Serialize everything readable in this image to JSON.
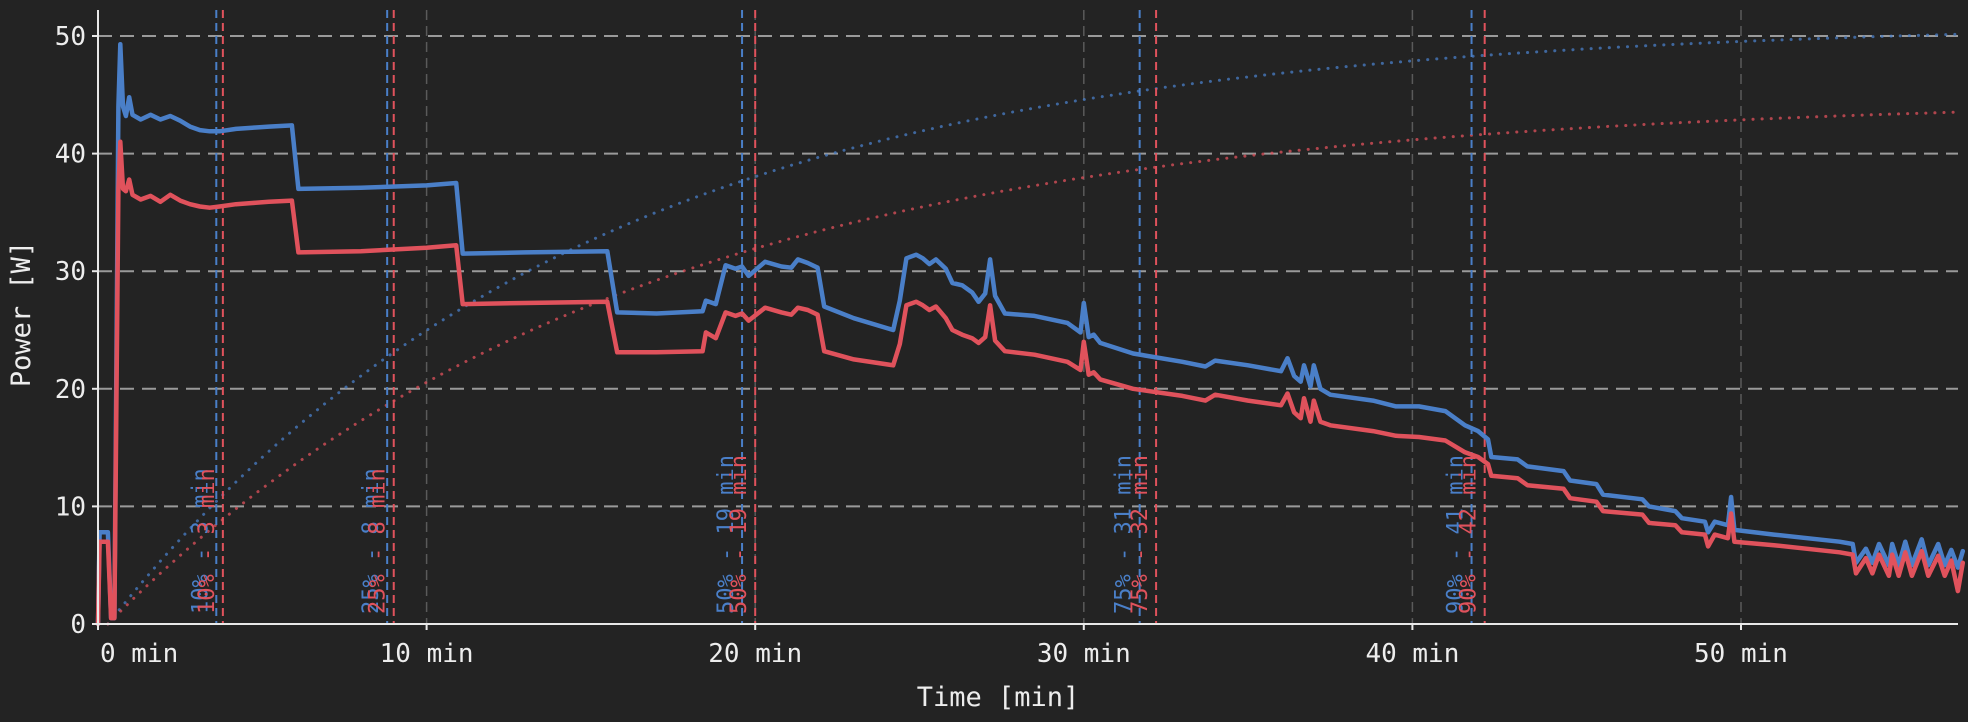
{
  "chart_data": {
    "type": "line",
    "title": "",
    "xlabel": "Time [min]",
    "ylabel": "Power [W]",
    "xlim": [
      0,
      56.8
    ],
    "ylim": [
      0,
      52
    ],
    "grid": true,
    "x_ticks": [
      0,
      10,
      20,
      30,
      40,
      50
    ],
    "x_tick_labels": [
      "0 min",
      "10 min",
      "20 min",
      "30 min",
      "40 min",
      "50 min"
    ],
    "y_ticks": [
      0,
      10,
      20,
      30,
      40,
      50
    ],
    "y_tick_labels": [
      "0",
      "10",
      "20",
      "30",
      "40",
      "50"
    ],
    "colors": {
      "blue": "#4a7fc8",
      "red": "#e0525c",
      "background": "#232323",
      "grid": "#9a9a9a"
    },
    "series": [
      {
        "color": "#4a7fc8",
        "style": "solid",
        "points": [
          [
            0,
            0
          ],
          [
            0.05,
            7.8
          ],
          [
            0.3,
            7.8
          ],
          [
            0.4,
            0.5
          ],
          [
            0.5,
            0.5
          ],
          [
            0.62,
            44
          ],
          [
            0.68,
            49.3
          ],
          [
            0.76,
            44
          ],
          [
            0.85,
            43.2
          ],
          [
            0.95,
            44.8
          ],
          [
            1.05,
            43.3
          ],
          [
            1.3,
            42.9
          ],
          [
            1.6,
            43.3
          ],
          [
            1.9,
            42.9
          ],
          [
            2.2,
            43.2
          ],
          [
            2.5,
            42.8
          ],
          [
            2.8,
            42.3
          ],
          [
            3.1,
            42.0
          ],
          [
            3.4,
            41.9
          ],
          [
            3.7,
            41.9
          ],
          [
            4.2,
            42.1
          ],
          [
            4.7,
            42.2
          ],
          [
            5.2,
            42.3
          ],
          [
            5.9,
            42.4
          ],
          [
            6.1,
            37
          ],
          [
            8,
            37.1
          ],
          [
            10,
            37.3
          ],
          [
            10.9,
            37.5
          ],
          [
            11.1,
            31.5
          ],
          [
            13,
            31.6
          ],
          [
            15.5,
            31.7
          ],
          [
            15.8,
            26.5
          ],
          [
            17,
            26.4
          ],
          [
            18.4,
            26.6
          ],
          [
            18.5,
            27.5
          ],
          [
            18.8,
            27.2
          ],
          [
            19.1,
            30.5
          ],
          [
            19.4,
            30.2
          ],
          [
            19.6,
            30.4
          ],
          [
            19.8,
            29.6
          ],
          [
            20.3,
            30.8
          ],
          [
            20.8,
            30.4
          ],
          [
            21.1,
            30.3
          ],
          [
            21.3,
            31.0
          ],
          [
            21.6,
            30.7
          ],
          [
            21.9,
            30.3
          ],
          [
            22.1,
            27.0
          ],
          [
            23,
            26
          ],
          [
            24.2,
            25.0
          ],
          [
            24.4,
            27.5
          ],
          [
            24.6,
            31.1
          ],
          [
            24.9,
            31.4
          ],
          [
            25.1,
            31.1
          ],
          [
            25.3,
            30.6
          ],
          [
            25.5,
            31.0
          ],
          [
            25.8,
            30.2
          ],
          [
            26.0,
            29
          ],
          [
            26.3,
            28.8
          ],
          [
            26.6,
            28.2
          ],
          [
            26.8,
            27.4
          ],
          [
            27.0,
            28.1
          ],
          [
            27.15,
            31.0
          ],
          [
            27.3,
            27.9
          ],
          [
            27.6,
            26.4
          ],
          [
            28.5,
            26.2
          ],
          [
            29.5,
            25.6
          ],
          [
            29.9,
            24.8
          ],
          [
            30.0,
            27.3
          ],
          [
            30.15,
            24.4
          ],
          [
            30.3,
            24.6
          ],
          [
            30.5,
            23.9
          ],
          [
            31.5,
            23.0
          ],
          [
            33,
            22.3
          ],
          [
            33.7,
            21.9
          ],
          [
            34.0,
            22.4
          ],
          [
            35,
            22.0
          ],
          [
            36.0,
            21.5
          ],
          [
            36.2,
            22.6
          ],
          [
            36.4,
            21.1
          ],
          [
            36.6,
            20.6
          ],
          [
            36.7,
            22.0
          ],
          [
            36.9,
            20.2
          ],
          [
            37.0,
            22.0
          ],
          [
            37.2,
            20.0
          ],
          [
            37.5,
            19.5
          ],
          [
            38.8,
            19.0
          ],
          [
            39.5,
            18.5
          ],
          [
            40.2,
            18.5
          ],
          [
            41.0,
            18.1
          ],
          [
            41.6,
            16.9
          ],
          [
            42.0,
            16.4
          ],
          [
            42.3,
            15.7
          ],
          [
            42.4,
            14.2
          ],
          [
            43.2,
            14.0
          ],
          [
            43.5,
            13.4
          ],
          [
            44.6,
            13.0
          ],
          [
            44.8,
            12.2
          ],
          [
            45.6,
            11.9
          ],
          [
            45.8,
            11.0
          ],
          [
            47.0,
            10.6
          ],
          [
            47.2,
            10.0
          ],
          [
            48.0,
            9.6
          ],
          [
            48.2,
            9.0
          ],
          [
            48.9,
            8.7
          ],
          [
            49.0,
            7.8
          ],
          [
            49.2,
            8.7
          ],
          [
            49.6,
            8.4
          ],
          [
            49.7,
            10.8
          ],
          [
            49.8,
            8.0
          ],
          [
            51,
            7.6
          ],
          [
            53,
            7.0
          ],
          [
            53.4,
            6.8
          ],
          [
            53.5,
            5.2
          ],
          [
            53.8,
            6.4
          ],
          [
            54.0,
            5.2
          ],
          [
            54.2,
            6.8
          ],
          [
            54.5,
            5.0
          ],
          [
            54.6,
            6.8
          ],
          [
            54.8,
            5.0
          ],
          [
            55.0,
            7.0
          ],
          [
            55.2,
            5.0
          ],
          [
            55.5,
            7.2
          ],
          [
            55.7,
            5.0
          ],
          [
            56.0,
            6.8
          ],
          [
            56.2,
            5.0
          ],
          [
            56.4,
            6.3
          ],
          [
            56.6,
            4.8
          ],
          [
            56.75,
            6.2
          ]
        ]
      },
      {
        "color": "#e0525c",
        "style": "solid",
        "points": [
          [
            0,
            0
          ],
          [
            0.05,
            7.0
          ],
          [
            0.3,
            7.0
          ],
          [
            0.4,
            0.5
          ],
          [
            0.5,
            0.5
          ],
          [
            0.62,
            37
          ],
          [
            0.68,
            41
          ],
          [
            0.76,
            37
          ],
          [
            0.85,
            36.8
          ],
          [
            0.95,
            37.8
          ],
          [
            1.05,
            36.5
          ],
          [
            1.3,
            36.1
          ],
          [
            1.6,
            36.4
          ],
          [
            1.9,
            35.9
          ],
          [
            2.2,
            36.5
          ],
          [
            2.5,
            36.0
          ],
          [
            2.8,
            35.7
          ],
          [
            3.1,
            35.5
          ],
          [
            3.4,
            35.4
          ],
          [
            3.7,
            35.5
          ],
          [
            4.2,
            35.7
          ],
          [
            4.7,
            35.8
          ],
          [
            5.2,
            35.9
          ],
          [
            5.9,
            36.0
          ],
          [
            6.1,
            31.6
          ],
          [
            8,
            31.7
          ],
          [
            10,
            32.0
          ],
          [
            10.9,
            32.2
          ],
          [
            11.1,
            27.2
          ],
          [
            13,
            27.3
          ],
          [
            15.5,
            27.4
          ],
          [
            15.8,
            23.1
          ],
          [
            17,
            23.1
          ],
          [
            18.4,
            23.2
          ],
          [
            18.5,
            24.8
          ],
          [
            18.8,
            24.3
          ],
          [
            19.1,
            26.5
          ],
          [
            19.4,
            26.2
          ],
          [
            19.6,
            26.4
          ],
          [
            19.8,
            25.8
          ],
          [
            20.3,
            26.9
          ],
          [
            20.8,
            26.5
          ],
          [
            21.1,
            26.3
          ],
          [
            21.3,
            26.9
          ],
          [
            21.6,
            26.7
          ],
          [
            21.9,
            26.3
          ],
          [
            22.1,
            23.2
          ],
          [
            23,
            22.5
          ],
          [
            24.2,
            22.0
          ],
          [
            24.4,
            23.8
          ],
          [
            24.6,
            27.1
          ],
          [
            24.9,
            27.4
          ],
          [
            25.1,
            27.1
          ],
          [
            25.3,
            26.7
          ],
          [
            25.5,
            27.0
          ],
          [
            25.8,
            26.0
          ],
          [
            26.0,
            25
          ],
          [
            26.3,
            24.6
          ],
          [
            26.6,
            24.3
          ],
          [
            26.8,
            23.9
          ],
          [
            27.0,
            24.4
          ],
          [
            27.15,
            27.1
          ],
          [
            27.3,
            24.1
          ],
          [
            27.6,
            23.2
          ],
          [
            28.5,
            22.9
          ],
          [
            29.5,
            22.3
          ],
          [
            29.9,
            21.6
          ],
          [
            30.0,
            24.0
          ],
          [
            30.15,
            21.2
          ],
          [
            30.3,
            21.4
          ],
          [
            30.5,
            20.8
          ],
          [
            31.5,
            20.0
          ],
          [
            33,
            19.4
          ],
          [
            33.7,
            19.0
          ],
          [
            34.0,
            19.5
          ],
          [
            35,
            19.0
          ],
          [
            36.0,
            18.6
          ],
          [
            36.2,
            19.6
          ],
          [
            36.4,
            18.0
          ],
          [
            36.6,
            17.5
          ],
          [
            36.7,
            19.2
          ],
          [
            36.9,
            17.2
          ],
          [
            37.0,
            19.0
          ],
          [
            37.2,
            17.2
          ],
          [
            37.5,
            16.9
          ],
          [
            38.8,
            16.4
          ],
          [
            39.5,
            16.0
          ],
          [
            40.2,
            15.9
          ],
          [
            41.0,
            15.6
          ],
          [
            41.6,
            14.6
          ],
          [
            42.0,
            14.2
          ],
          [
            42.3,
            13.6
          ],
          [
            42.4,
            12.6
          ],
          [
            43.2,
            12.4
          ],
          [
            43.5,
            11.8
          ],
          [
            44.6,
            11.5
          ],
          [
            44.8,
            10.7
          ],
          [
            45.6,
            10.4
          ],
          [
            45.8,
            9.6
          ],
          [
            47.0,
            9.3
          ],
          [
            47.2,
            8.6
          ],
          [
            48.0,
            8.4
          ],
          [
            48.2,
            7.8
          ],
          [
            48.9,
            7.6
          ],
          [
            49.0,
            6.6
          ],
          [
            49.2,
            7.6
          ],
          [
            49.6,
            7.3
          ],
          [
            49.7,
            9.4
          ],
          [
            49.8,
            7.0
          ],
          [
            51,
            6.7
          ],
          [
            53,
            6.1
          ],
          [
            53.4,
            5.9
          ],
          [
            53.5,
            4.3
          ],
          [
            53.8,
            5.6
          ],
          [
            54.0,
            4.3
          ],
          [
            54.2,
            5.9
          ],
          [
            54.5,
            4.1
          ],
          [
            54.6,
            5.9
          ],
          [
            54.8,
            4.1
          ],
          [
            55.0,
            6.1
          ],
          [
            55.2,
            4.1
          ],
          [
            55.5,
            6.2
          ],
          [
            55.7,
            4.1
          ],
          [
            56.0,
            5.8
          ],
          [
            56.2,
            4.1
          ],
          [
            56.4,
            5.4
          ],
          [
            56.6,
            2.8
          ],
          [
            56.75,
            5.2
          ]
        ]
      },
      {
        "color": "#4a7fc8",
        "style": "dotted",
        "function": "cumulative",
        "asymptote": 51.2,
        "tau": 14.5,
        "x0": 0.3
      },
      {
        "color": "#e0525c",
        "style": "dotted",
        "function": "cumulative",
        "asymptote": 44.8,
        "tau": 15.8,
        "x0": 0.3
      }
    ],
    "markers": [
      {
        "x": 3.6,
        "label": "10% - 3 min",
        "color": "#4a7fc8"
      },
      {
        "x": 3.8,
        "label": "10% - 3 min",
        "color": "#e0525c"
      },
      {
        "x": 8.8,
        "label": "25% - 8 min",
        "color": "#4a7fc8"
      },
      {
        "x": 9.0,
        "label": "25% - 8 min",
        "color": "#e0525c"
      },
      {
        "x": 19.6,
        "label": "50% - 19 min",
        "color": "#4a7fc8"
      },
      {
        "x": 20.0,
        "label": "50% - 19 min",
        "color": "#e0525c"
      },
      {
        "x": 31.7,
        "label": "75% - 31 min",
        "color": "#4a7fc8"
      },
      {
        "x": 32.2,
        "label": "75% - 32 min",
        "color": "#e0525c"
      },
      {
        "x": 41.8,
        "label": "90% - 41 min",
        "color": "#4a7fc8"
      },
      {
        "x": 42.2,
        "label": "90% - 42 min",
        "color": "#e0525c"
      }
    ]
  }
}
